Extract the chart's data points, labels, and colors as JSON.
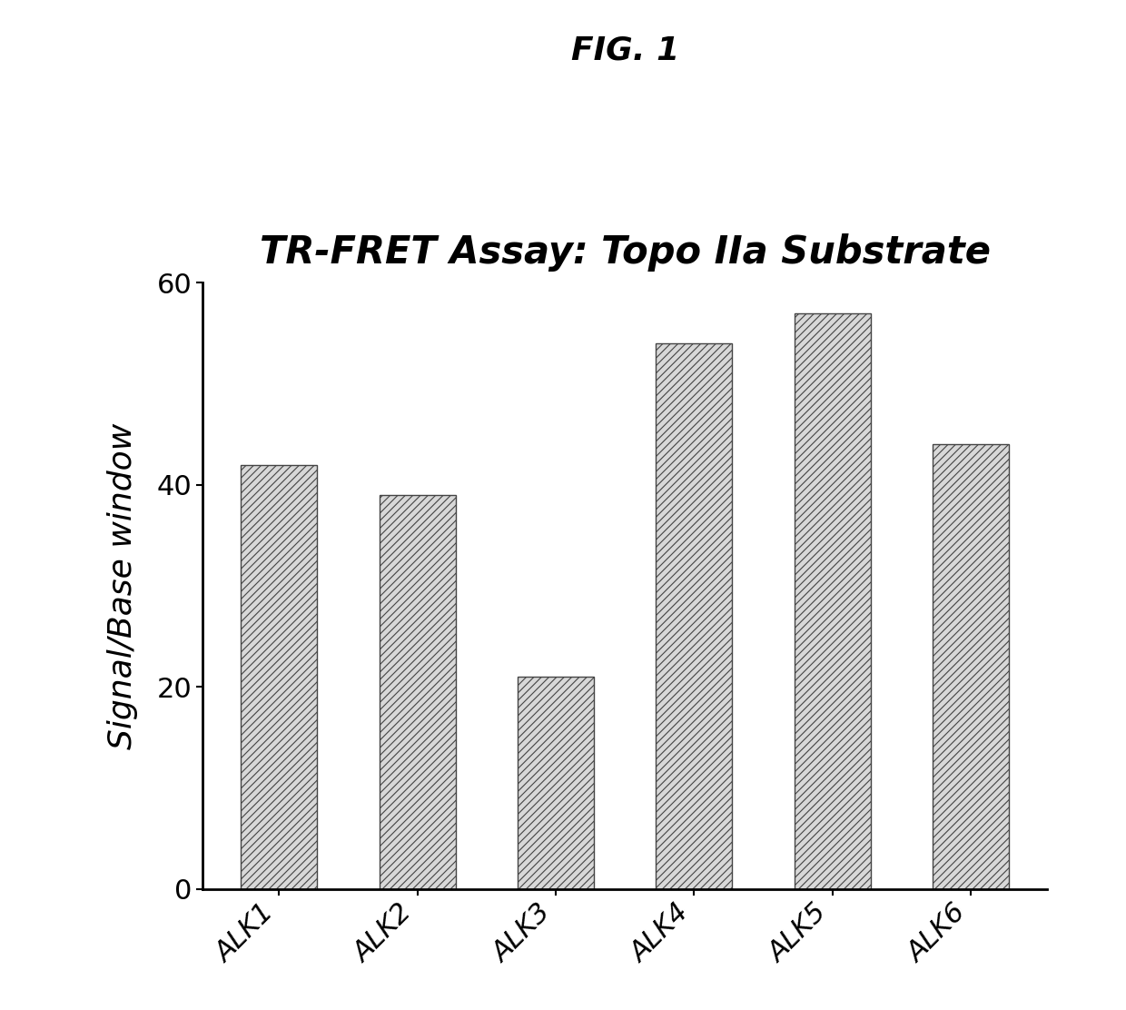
{
  "title": "TR-FRET Assay: Topo IIa Substrate",
  "fig_label": "FIG. 1",
  "categories": [
    "ALK1",
    "ALK2",
    "ALK3",
    "ALK4",
    "ALK5",
    "ALK6"
  ],
  "values": [
    42,
    39,
    21,
    54,
    57,
    44
  ],
  "ylabel": "Signal/Base window",
  "ylim": [
    0,
    60
  ],
  "yticks": [
    0,
    20,
    40,
    60
  ],
  "background_color": "#ffffff",
  "title_fontsize": 30,
  "figlabel_fontsize": 26,
  "ylabel_fontsize": 26,
  "ytick_fontsize": 22,
  "xtick_fontsize": 22
}
